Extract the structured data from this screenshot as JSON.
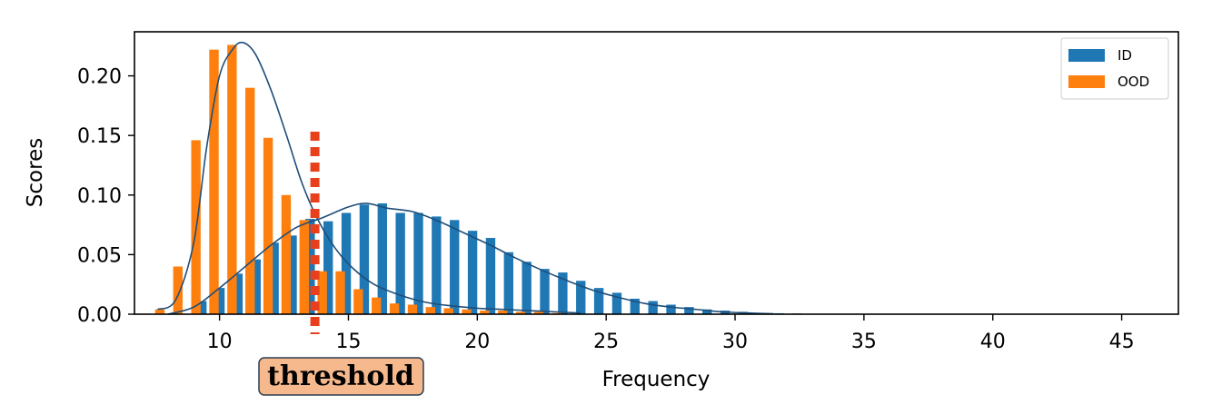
{
  "chart_data": {
    "type": "bar",
    "xlabel": "Frequency",
    "ylabel": "Scores",
    "xlim": [
      6.7,
      47.2
    ],
    "ylim": [
      0,
      0.237
    ],
    "xticks": [
      10,
      15,
      20,
      25,
      30,
      35,
      40,
      45
    ],
    "yticks": [
      0.0,
      0.05,
      0.1,
      0.15,
      0.2
    ],
    "ytick_labels": [
      "0.00",
      "0.05",
      "0.10",
      "0.15",
      "0.20"
    ],
    "grid": false,
    "legend_position": "top-right",
    "bin_width": 0.7,
    "series": [
      {
        "name": "ID",
        "color": "#1f77b4",
        "bins": [
          {
            "x": 9.2,
            "y": 0.011
          },
          {
            "x": 9.9,
            "y": 0.022
          },
          {
            "x": 10.6,
            "y": 0.034
          },
          {
            "x": 11.3,
            "y": 0.046
          },
          {
            "x": 12.0,
            "y": 0.06
          },
          {
            "x": 12.7,
            "y": 0.066
          },
          {
            "x": 13.4,
            "y": 0.08
          },
          {
            "x": 14.1,
            "y": 0.078
          },
          {
            "x": 14.8,
            "y": 0.085
          },
          {
            "x": 15.5,
            "y": 0.092
          },
          {
            "x": 16.2,
            "y": 0.093
          },
          {
            "x": 16.9,
            "y": 0.085
          },
          {
            "x": 17.6,
            "y": 0.085
          },
          {
            "x": 18.3,
            "y": 0.082
          },
          {
            "x": 19.0,
            "y": 0.079
          },
          {
            "x": 19.7,
            "y": 0.07
          },
          {
            "x": 20.4,
            "y": 0.064
          },
          {
            "x": 21.1,
            "y": 0.052
          },
          {
            "x": 21.8,
            "y": 0.044
          },
          {
            "x": 22.5,
            "y": 0.038
          },
          {
            "x": 23.2,
            "y": 0.035
          },
          {
            "x": 23.9,
            "y": 0.028
          },
          {
            "x": 24.6,
            "y": 0.022
          },
          {
            "x": 25.3,
            "y": 0.018
          },
          {
            "x": 26.0,
            "y": 0.013
          },
          {
            "x": 26.7,
            "y": 0.011
          },
          {
            "x": 27.4,
            "y": 0.008
          },
          {
            "x": 28.1,
            "y": 0.006
          },
          {
            "x": 28.8,
            "y": 0.004
          },
          {
            "x": 29.5,
            "y": 0.003
          },
          {
            "x": 30.2,
            "y": 0.002
          },
          {
            "x": 30.9,
            "y": 0.001
          },
          {
            "x": 31.6,
            "y": 0.0008
          },
          {
            "x": 32.3,
            "y": 0.0006
          },
          {
            "x": 33.0,
            "y": 0.0004
          },
          {
            "x": 33.7,
            "y": 0.0003
          }
        ],
        "kde": [
          [
            8.0,
            0.0
          ],
          [
            9.0,
            0.006
          ],
          [
            10.0,
            0.022
          ],
          [
            11.0,
            0.04
          ],
          [
            12.0,
            0.058
          ],
          [
            13.0,
            0.073
          ],
          [
            14.0,
            0.081
          ],
          [
            15.0,
            0.09
          ],
          [
            15.7,
            0.093
          ],
          [
            16.5,
            0.089
          ],
          [
            17.5,
            0.086
          ],
          [
            18.5,
            0.078
          ],
          [
            19.5,
            0.068
          ],
          [
            20.5,
            0.058
          ],
          [
            21.5,
            0.047
          ],
          [
            22.5,
            0.037
          ],
          [
            23.5,
            0.028
          ],
          [
            24.5,
            0.02
          ],
          [
            25.5,
            0.014
          ],
          [
            26.5,
            0.009
          ],
          [
            27.5,
            0.006
          ],
          [
            28.5,
            0.004
          ],
          [
            29.5,
            0.002
          ],
          [
            30.5,
            0.001
          ],
          [
            31.5,
            0.0003
          ]
        ]
      },
      {
        "name": "OOD",
        "color": "#ff7f0e",
        "bins": [
          {
            "x": 7.8,
            "y": 0.004
          },
          {
            "x": 8.5,
            "y": 0.04
          },
          {
            "x": 9.2,
            "y": 0.146
          },
          {
            "x": 9.9,
            "y": 0.222
          },
          {
            "x": 10.6,
            "y": 0.226
          },
          {
            "x": 11.3,
            "y": 0.19
          },
          {
            "x": 12.0,
            "y": 0.148
          },
          {
            "x": 12.7,
            "y": 0.1
          },
          {
            "x": 13.4,
            "y": 0.079
          },
          {
            "x": 14.1,
            "y": 0.036
          },
          {
            "x": 14.8,
            "y": 0.036
          },
          {
            "x": 15.5,
            "y": 0.021
          },
          {
            "x": 16.2,
            "y": 0.014
          },
          {
            "x": 16.9,
            "y": 0.009
          },
          {
            "x": 17.6,
            "y": 0.008
          },
          {
            "x": 18.3,
            "y": 0.006
          },
          {
            "x": 19.0,
            "y": 0.005
          },
          {
            "x": 19.7,
            "y": 0.004
          },
          {
            "x": 20.4,
            "y": 0.003
          },
          {
            "x": 21.1,
            "y": 0.003
          },
          {
            "x": 21.8,
            "y": 0.002
          },
          {
            "x": 22.5,
            "y": 0.002
          },
          {
            "x": 23.2,
            "y": 0.001
          }
        ],
        "kde": [
          [
            7.6,
            0.004
          ],
          [
            8.3,
            0.012
          ],
          [
            9.0,
            0.06
          ],
          [
            9.5,
            0.14
          ],
          [
            10.0,
            0.2
          ],
          [
            10.5,
            0.222
          ],
          [
            10.9,
            0.228
          ],
          [
            11.4,
            0.218
          ],
          [
            12.0,
            0.188
          ],
          [
            12.6,
            0.15
          ],
          [
            13.2,
            0.11
          ],
          [
            13.8,
            0.08
          ],
          [
            14.5,
            0.055
          ],
          [
            15.2,
            0.038
          ],
          [
            16.0,
            0.025
          ],
          [
            17.0,
            0.016
          ],
          [
            18.0,
            0.01
          ],
          [
            19.0,
            0.007
          ],
          [
            20.0,
            0.005
          ],
          [
            21.0,
            0.004
          ],
          [
            22.0,
            0.003
          ],
          [
            23.0,
            0.002
          ],
          [
            24.0,
            0.001
          ]
        ]
      }
    ],
    "threshold": {
      "x": 13.7,
      "label": "threshold",
      "color": "#e8401c"
    }
  }
}
